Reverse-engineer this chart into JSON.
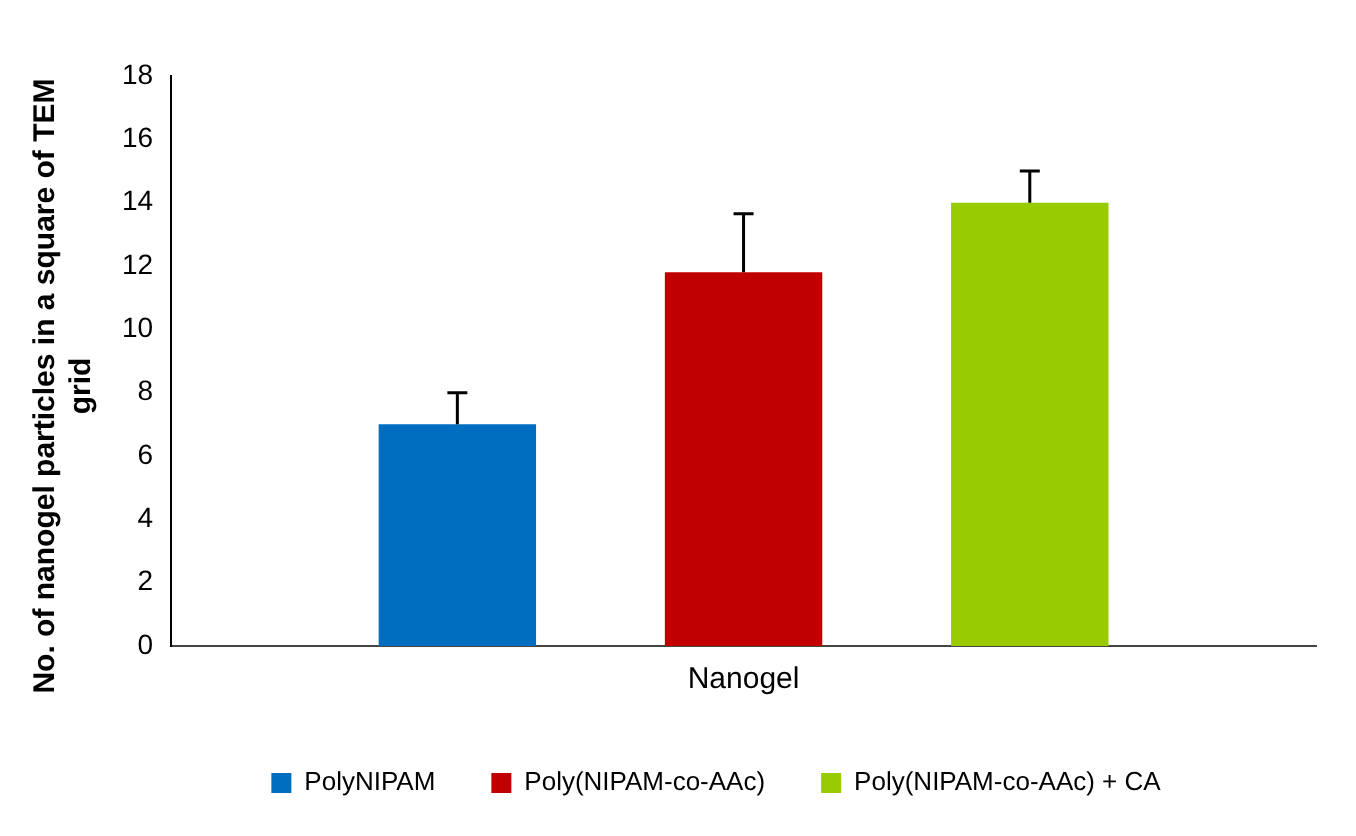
{
  "chart_data": {
    "type": "bar",
    "ylabel": "No. of nanogel particles in a square of TEM grid",
    "categories": [
      "Nanogel"
    ],
    "series": [
      {
        "name": "PolyNIPAM",
        "color": "#006ec0",
        "values": [
          7
        ],
        "errors": [
          [
            7,
            8
          ]
        ]
      },
      {
        "name": "Poly(NIPAM-co-AAc)",
        "color": "#c00000",
        "values": [
          11.8
        ],
        "errors": [
          [
            11.8,
            13.65
          ]
        ]
      },
      {
        "name": "Poly(NIPAM-co-AAc) + CA",
        "color": "#99cc00",
        "values": [
          14
        ],
        "errors": [
          [
            14,
            15
          ]
        ]
      }
    ],
    "ylim": [
      0,
      18
    ],
    "yticks": [
      0,
      2,
      4,
      6,
      8,
      10,
      12,
      14,
      16,
      18
    ],
    "grid": false,
    "legend": "bottom"
  }
}
